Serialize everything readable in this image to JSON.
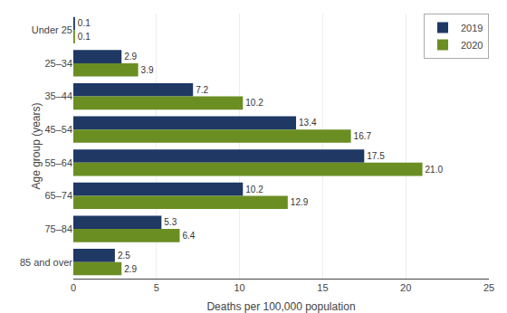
{
  "chart_data": {
    "type": "bar",
    "orientation": "horizontal",
    "xlabel": "Deaths per 100,000 population",
    "ylabel": "Age group (years)",
    "categories": [
      "Under 25",
      "25–34",
      "35–44",
      "45–54",
      "55–64",
      "65–74",
      "75–84",
      "85 and over"
    ],
    "series": [
      {
        "name": "2019",
        "color": "#1f3864",
        "values": [
          0.1,
          2.9,
          7.2,
          13.4,
          17.5,
          10.2,
          5.3,
          2.5
        ],
        "value_labels": [
          "0.1",
          "2.9",
          "7.2",
          "13.4",
          "17.5",
          "10.2",
          "5.3",
          "2.5"
        ]
      },
      {
        "name": "2020",
        "color": "#6b8e23",
        "values": [
          0.1,
          3.9,
          10.2,
          16.7,
          21.0,
          12.9,
          6.4,
          2.9
        ],
        "value_labels": [
          "0.1",
          "3.9",
          "10.2",
          "16.7",
          "21.0",
          "12.9",
          "6.4",
          "2.9"
        ]
      }
    ],
    "xlim": [
      0,
      25
    ],
    "xticks": [
      0,
      5,
      10,
      15,
      20,
      25
    ],
    "grid": true,
    "legend": "upper right",
    "data_labels": true
  }
}
